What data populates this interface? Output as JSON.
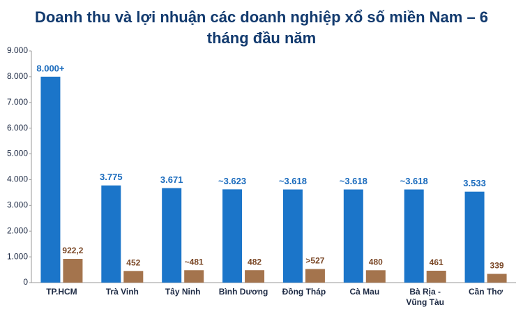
{
  "chart_data": {
    "type": "bar",
    "title": "Doanh thu và lợi nhuận các doanh nghiệp xổ số miền Nam – 6 tháng đầu năm",
    "categories": [
      "TP.HCM",
      "Trà Vinh",
      "Tây Ninh",
      "Bình Dương",
      "Đồng Tháp",
      "Cà Mau",
      "Bà Rịa - Vũng Tàu",
      "Cần Thơ"
    ],
    "series": [
      {
        "color": "#1b75c9",
        "values": [
          8000,
          3775,
          3671,
          3623,
          3618,
          3618,
          3618,
          3533
        ],
        "value_labels": [
          "8.000+",
          "3.775",
          "3.671",
          "~3.623",
          "~3.618",
          "~3.618",
          "~3.618",
          "3.533"
        ],
        "label_color": "#1a6bbd"
      },
      {
        "color": "#a4744d",
        "values": [
          922.2,
          452,
          481,
          482,
          527,
          480,
          461,
          339
        ],
        "value_labels": [
          "922,2",
          "452",
          "~481",
          "482",
          ">527",
          "480",
          "461",
          "339"
        ],
        "label_color": "#7a4726"
      }
    ],
    "ylim": [
      0,
      9000
    ],
    "yticks": [
      0,
      {
        "value": 1000,
        "label": "1.000"
      },
      {
        "value": 2000,
        "label": "2.000"
      },
      {
        "value": 3000,
        "label": "3.000"
      },
      {
        "value": 4000,
        "label": "4.000"
      },
      {
        "value": 5000,
        "label": "5.000"
      },
      {
        "value": 6000,
        "label": "6.000"
      },
      {
        "value": 7000,
        "label": "7.000"
      },
      {
        "value": 8000,
        "label": "8.000"
      },
      {
        "value": 9000,
        "label": "9.000"
      }
    ],
    "grid": false
  }
}
